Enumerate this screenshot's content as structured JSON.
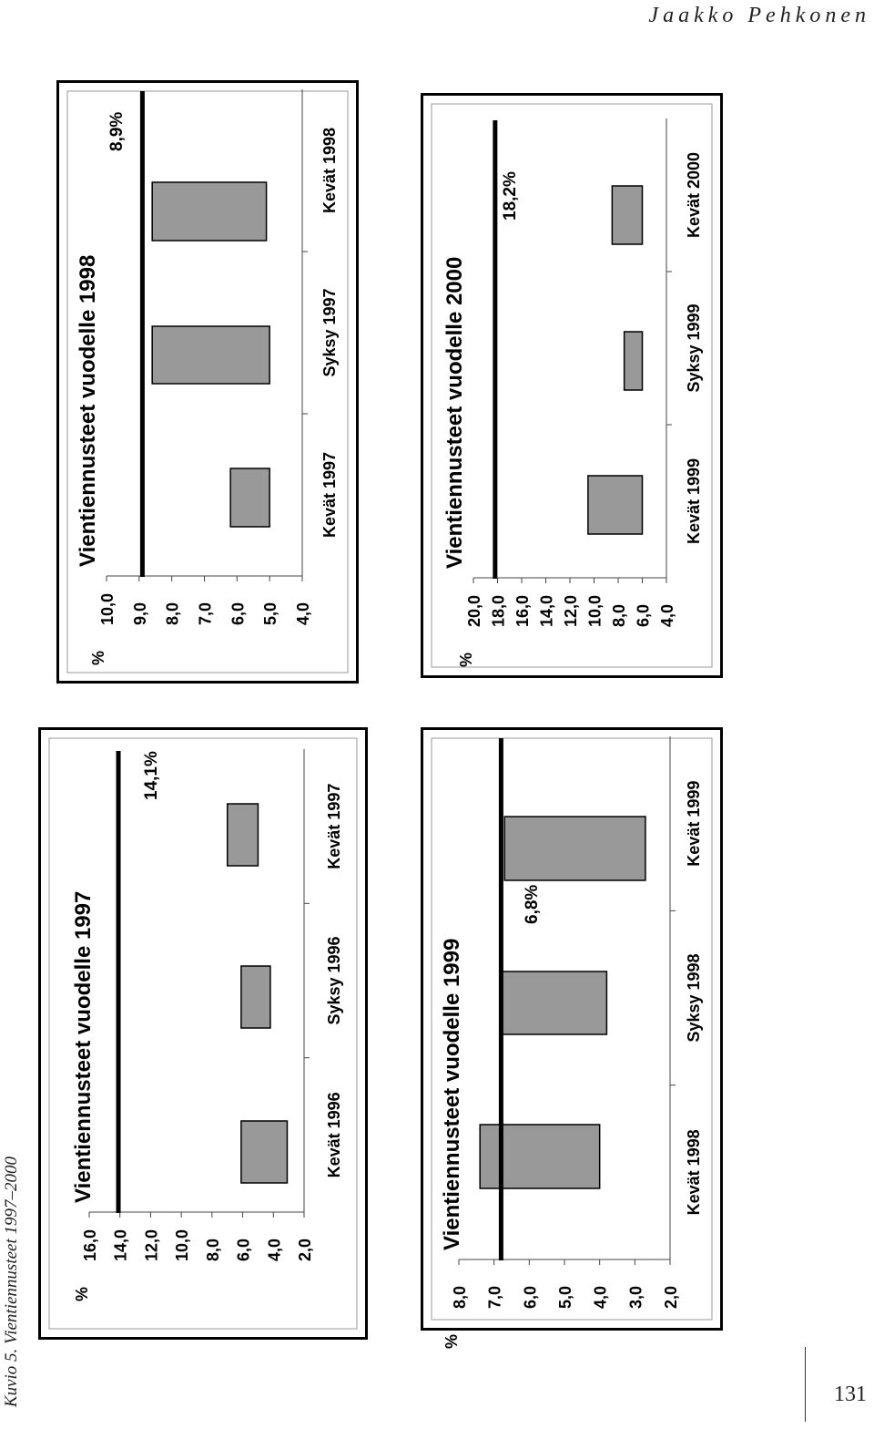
{
  "header": {
    "author": "Jaakko Pehkonen"
  },
  "caption": "Kuvio 5. Vientiennusteet 1997–2000",
  "page_number": "131",
  "chart_data": [
    {
      "type": "bar",
      "title": "Vientiennusteet vuodelle 1997",
      "ylabel": "%",
      "ylim": [
        2,
        16
      ],
      "y_ticks": [
        "2,0",
        "4,0",
        "6,0",
        "8,0",
        "10,0",
        "12,0",
        "14,0",
        "16,0"
      ],
      "y_tick_values": [
        2,
        4,
        6,
        8,
        10,
        12,
        14,
        16
      ],
      "categories": [
        "Kevät 1996",
        "Syksy 1996",
        "Kevät 1997"
      ],
      "ranges": [
        [
          3.1,
          6.1
        ],
        [
          4.2,
          6.1
        ],
        [
          5.0,
          7.0
        ]
      ],
      "outcome": {
        "value": 14.1,
        "label": "14,1%"
      }
    },
    {
      "type": "bar",
      "title": "Vientiennusteet vuodelle 1998",
      "ylabel": "%",
      "ylim": [
        4,
        10
      ],
      "y_ticks": [
        "4,0",
        "5,0",
        "6,0",
        "7,0",
        "8,0",
        "9,0",
        "10,0"
      ],
      "y_tick_values": [
        4,
        5,
        6,
        7,
        8,
        9,
        10
      ],
      "categories": [
        "Kevät 1997",
        "Syksy 1997",
        "Kevät 1998"
      ],
      "ranges": [
        [
          5.0,
          6.2
        ],
        [
          5.0,
          8.6
        ],
        [
          5.1,
          8.6
        ]
      ],
      "outcome": {
        "value": 8.9,
        "label": "8,9%"
      }
    },
    {
      "type": "bar",
      "title": "Vientiennusteet vuodelle 1999",
      "ylabel": "%",
      "ylim": [
        2,
        8
      ],
      "y_ticks": [
        "2,0",
        "3,0",
        "4,0",
        "5,0",
        "6,0",
        "7,0",
        "8,0"
      ],
      "y_tick_values": [
        2,
        3,
        4,
        5,
        6,
        7,
        8
      ],
      "categories": [
        "Kevät 1998",
        "Syksy 1998",
        "Kevät 1999"
      ],
      "ranges": [
        [
          4.0,
          7.4
        ],
        [
          3.8,
          6.8
        ],
        [
          2.7,
          6.7
        ]
      ],
      "outcome": {
        "value": 6.8,
        "label": "6,8%"
      }
    },
    {
      "type": "bar",
      "title": "Vientiennusteet vuodelle 2000",
      "ylabel": "%",
      "ylim": [
        4,
        20
      ],
      "y_ticks": [
        "4,0",
        "6,0",
        "8,0",
        "10,0",
        "12,0",
        "14,0",
        "16,0",
        "18,0",
        "20,0"
      ],
      "y_tick_values": [
        4,
        6,
        8,
        10,
        12,
        14,
        16,
        18,
        20
      ],
      "categories": [
        "Kevät 1999",
        "Syksy 1999",
        "Kevät 2000"
      ],
      "ranges": [
        [
          6.0,
          10.5
        ],
        [
          6.0,
          7.5
        ],
        [
          6.0,
          8.5
        ]
      ],
      "outcome": {
        "value": 18.2,
        "label": "18,2%"
      }
    }
  ]
}
